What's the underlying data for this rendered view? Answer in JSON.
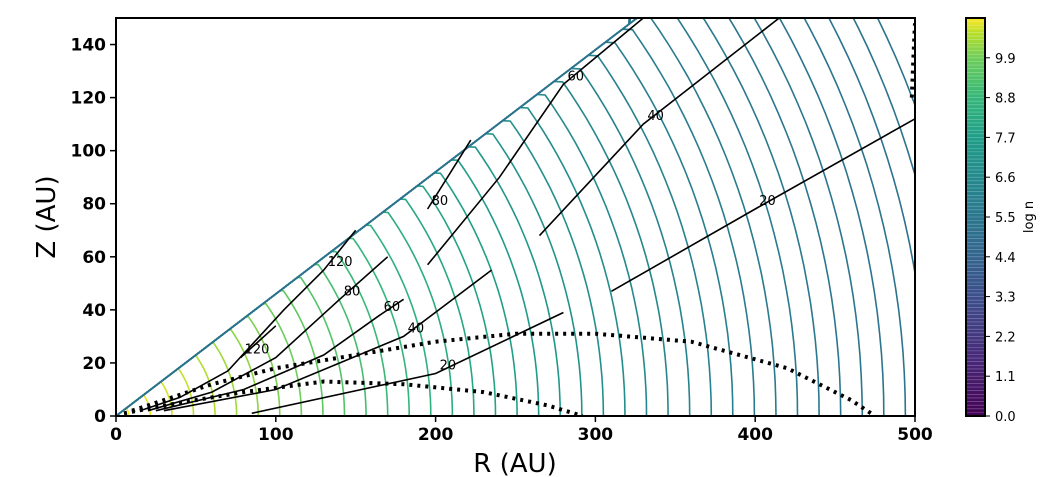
{
  "chart_data": {
    "type": "contour",
    "xlabel": "R (AU)",
    "ylabel": "Z (AU)",
    "xlim": [
      0,
      500
    ],
    "ylim": [
      0,
      150
    ],
    "xticks": [
      "0",
      "100",
      "200",
      "300",
      "400",
      "500"
    ],
    "yticks": [
      "0",
      "20",
      "40",
      "60",
      "80",
      "100",
      "120",
      "140"
    ],
    "colormap": "viridis",
    "colorbar": {
      "label": "log n",
      "range": [
        0.0,
        11.0
      ],
      "ticks": [
        "0.0",
        "1.1",
        "2.2",
        "3.3",
        "4.4",
        "5.5",
        "6.6",
        "7.7",
        "8.8",
        "9.9"
      ]
    },
    "density_contours": {
      "count": 40,
      "wedge_opening_ratio": 0.46,
      "color_low": "#31688e",
      "color_high": "#fde725"
    },
    "temperature_contours": [
      {
        "label": "120",
        "points": [
          [
            78,
            22
          ],
          [
            100,
            34
          ]
        ]
      },
      {
        "label": "120",
        "points": [
          [
            15,
            2
          ],
          [
            40,
            7
          ],
          [
            70,
            17
          ],
          [
            105,
            40
          ],
          [
            130,
            55
          ],
          [
            150,
            70
          ]
        ]
      },
      {
        "label": "80",
        "points": [
          [
            20,
            2
          ],
          [
            60,
            9
          ],
          [
            100,
            22
          ],
          [
            140,
            44
          ],
          [
            170,
            60
          ]
        ]
      },
      {
        "label": "80",
        "points": [
          [
            195,
            78
          ],
          [
            222,
            104
          ]
        ]
      },
      {
        "label": "60",
        "points": [
          [
            25,
            2
          ],
          [
            80,
            10
          ],
          [
            130,
            23
          ],
          [
            165,
            38
          ],
          [
            180,
            44
          ]
        ]
      },
      {
        "label": "60",
        "points": [
          [
            195,
            57
          ],
          [
            240,
            90
          ],
          [
            280,
            125
          ],
          [
            330,
            150
          ]
        ]
      },
      {
        "label": "40",
        "points": [
          [
            30,
            2
          ],
          [
            100,
            10
          ],
          [
            180,
            30
          ],
          [
            235,
            55
          ]
        ]
      },
      {
        "label": "40",
        "points": [
          [
            265,
            68
          ],
          [
            330,
            110
          ],
          [
            415,
            150
          ]
        ]
      },
      {
        "label": "20",
        "points": [
          [
            85,
            1
          ],
          [
            200,
            16
          ],
          [
            280,
            39
          ]
        ]
      },
      {
        "label": "20",
        "points": [
          [
            310,
            47
          ],
          [
            400,
            78
          ],
          [
            500,
            112
          ]
        ]
      }
    ],
    "dotted_contours": [
      {
        "points": [
          [
            5,
            1
          ],
          [
            40,
            5
          ],
          [
            80,
            9
          ],
          [
            130,
            13
          ],
          [
            180,
            12
          ],
          [
            230,
            9
          ],
          [
            270,
            4
          ],
          [
            292,
            0
          ]
        ]
      },
      {
        "points": [
          [
            10,
            2
          ],
          [
            60,
            12
          ],
          [
            100,
            18
          ],
          [
            150,
            23
          ],
          [
            200,
            28
          ],
          [
            250,
            31
          ],
          [
            300,
            31
          ],
          [
            360,
            28
          ],
          [
            420,
            18
          ],
          [
            460,
            6
          ],
          [
            475,
            0
          ]
        ]
      },
      {
        "points": [
          [
            498,
            120
          ],
          [
            499,
            135
          ],
          [
            500,
            148
          ]
        ]
      }
    ]
  }
}
